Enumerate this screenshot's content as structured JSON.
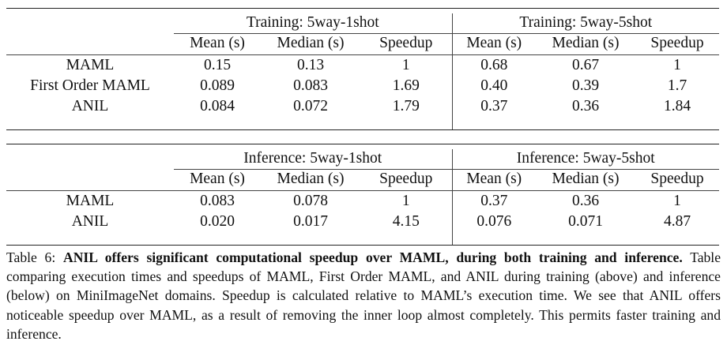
{
  "table_training": {
    "group1": "Training: 5way-1shot",
    "group2": "Training: 5way-5shot",
    "col_mean": "Mean (s)",
    "col_median": "Median (s)",
    "col_speedup": "Speedup",
    "rows": [
      {
        "method": "MAML",
        "v1": "0.15",
        "v2": "0.13",
        "v3": "1",
        "v4": "0.68",
        "v5": "0.67",
        "v6": "1"
      },
      {
        "method": "First Order MAML",
        "v1": "0.089",
        "v2": "0.083",
        "v3": "1.69",
        "v4": "0.40",
        "v5": "0.39",
        "v6": "1.7"
      },
      {
        "method": "ANIL",
        "v1": "0.084",
        "v2": "0.072",
        "v3": "1.79",
        "v4": "0.37",
        "v5": "0.36",
        "v6": "1.84"
      }
    ]
  },
  "table_inference": {
    "group1": "Inference: 5way-1shot",
    "group2": "Inference: 5way-5shot",
    "col_mean": "Mean (s)",
    "col_median": "Median (s)",
    "col_speedup": "Speedup",
    "rows": [
      {
        "method": "MAML",
        "v1": "0.083",
        "v2": "0.078",
        "v3": "1",
        "v4": "0.37",
        "v5": "0.36",
        "v6": "1"
      },
      {
        "method": "ANIL",
        "v1": "0.020",
        "v2": "0.017",
        "v3": "4.15",
        "v4": "0.076",
        "v5": "0.071",
        "v6": "4.87"
      }
    ]
  },
  "caption": {
    "label": "Table 6:",
    "bold": "ANIL offers significant computational speedup over MAML, during both training and inference.",
    "text": "Table comparing execution times and speedups of MAML, First Order MAML, and ANIL during training (above) and inference (below) on MiniImageNet domains. Speedup is calculated relative to MAML’s execution time. We see that ANIL offers noticeable speedup over MAML, as a result of removing the inner loop almost completely. This permits faster training and inference."
  }
}
